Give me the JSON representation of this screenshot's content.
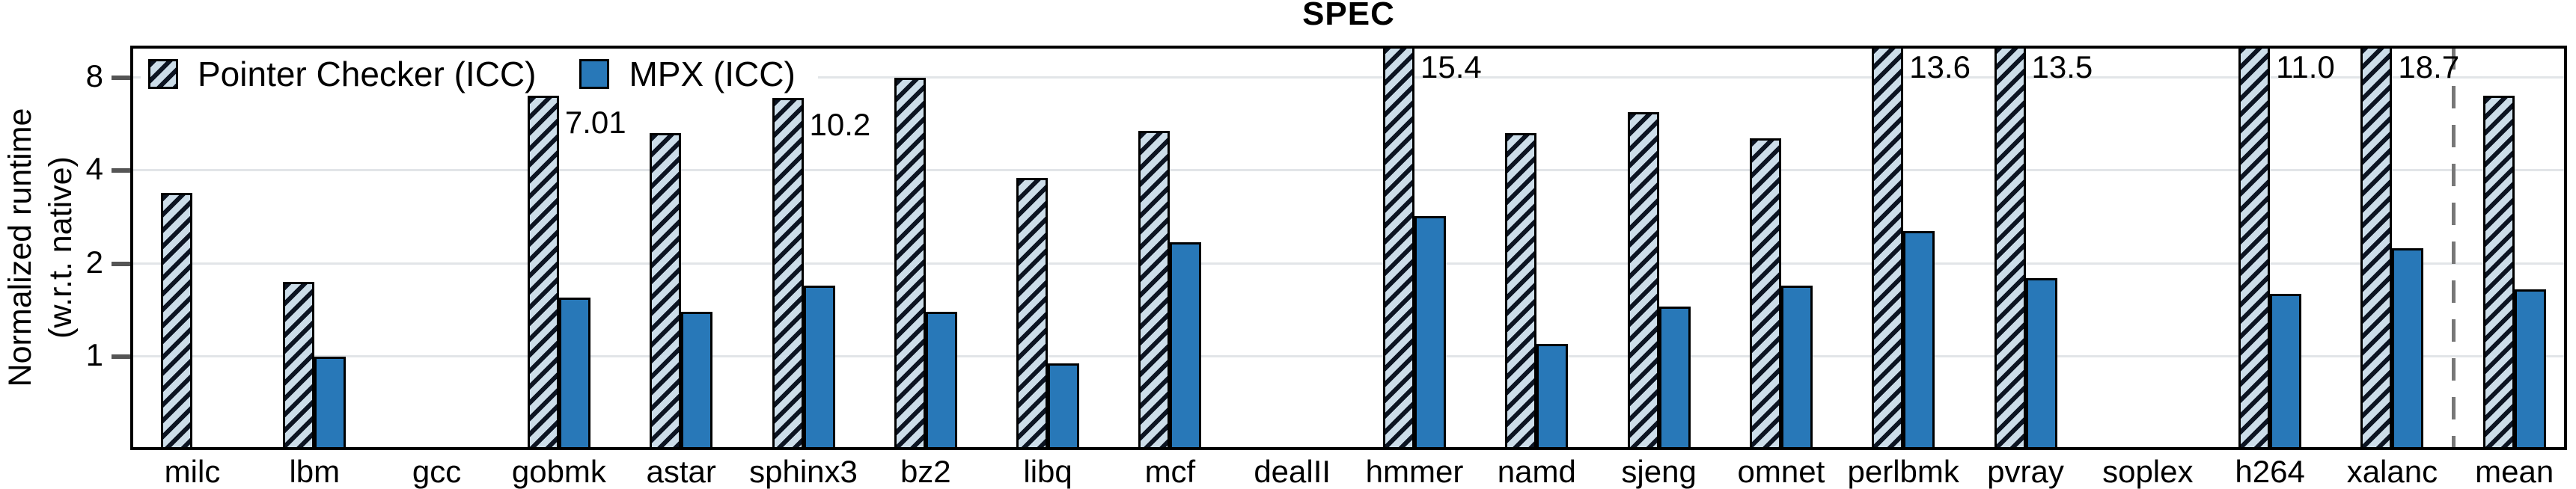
{
  "title": "SPEC",
  "y_axis": {
    "label": "Normalized runtime\n(w.r.t. native)",
    "scale": "log2",
    "tick_values": [
      8,
      4,
      2,
      1
    ],
    "range_min": 0.5,
    "range_max": 10.2
  },
  "legend": {
    "items": [
      {
        "label": "Pointer Checker (ICC)",
        "swatch": "hatched"
      },
      {
        "label": "MPX (ICC)",
        "swatch": "solid"
      }
    ]
  },
  "colors": {
    "mpx_blue": "#2878b8",
    "hatch_fill": "#ccdde9",
    "hatch_stripe": "#0c1422",
    "gridline": "#e2e5e8",
    "frame": "#000000",
    "tick": "#555555",
    "separator": "#777777"
  },
  "chart_data": {
    "type": "bar",
    "title": "SPEC",
    "ylabel": "Normalized runtime (w.r.t. native)",
    "y_scale": "log2",
    "ylim": [
      0.5,
      10.2
    ],
    "grid": true,
    "legend_position": "top-left",
    "categories": [
      "milc",
      "lbm",
      "gcc",
      "gobmk",
      "astar",
      "sphinx3",
      "bz2",
      "libq",
      "mcf",
      "dealII",
      "hmmer",
      "namd",
      "sjeng",
      "omnet",
      "perlbmk",
      "pvray",
      "soplex",
      "h264",
      "xalanc",
      "mean"
    ],
    "series": [
      {
        "name": "Pointer Checker (ICC)",
        "style": "hatched",
        "values": [
          3.4,
          1.75,
          null,
          7.01,
          5.3,
          10.2,
          8.0,
          3.8,
          5.4,
          null,
          15.4,
          5.3,
          6.2,
          5.1,
          13.6,
          13.5,
          null,
          11.0,
          18.7,
          7.0
        ],
        "annotations": [
          null,
          null,
          null,
          "7.01",
          null,
          "10.2",
          null,
          null,
          null,
          null,
          "15.4",
          null,
          null,
          null,
          "13.6",
          "13.5",
          null,
          "11.0",
          "18.7",
          null
        ],
        "drawn_height_override": [
          null,
          null,
          null,
          null,
          null,
          6.9,
          null,
          null,
          null,
          null,
          null,
          null,
          null,
          null,
          null,
          null,
          null,
          null,
          null,
          null
        ]
      },
      {
        "name": "MPX (ICC)",
        "style": "solid",
        "values": [
          null,
          1.0,
          null,
          1.55,
          1.4,
          1.7,
          1.4,
          0.95,
          2.35,
          null,
          2.85,
          1.1,
          1.45,
          1.7,
          2.55,
          1.8,
          null,
          1.6,
          2.25,
          1.65
        ],
        "annotations": [
          null,
          null,
          null,
          null,
          null,
          null,
          null,
          null,
          null,
          null,
          null,
          null,
          null,
          null,
          null,
          null,
          null,
          null,
          null,
          null
        ],
        "drawn_height_override": [
          null,
          null,
          null,
          null,
          null,
          null,
          null,
          null,
          null,
          null,
          null,
          null,
          null,
          null,
          null,
          null,
          null,
          null,
          null,
          null
        ]
      }
    ],
    "separator": {
      "between": [
        "xalanc",
        "mean"
      ],
      "style": "dashed"
    }
  }
}
